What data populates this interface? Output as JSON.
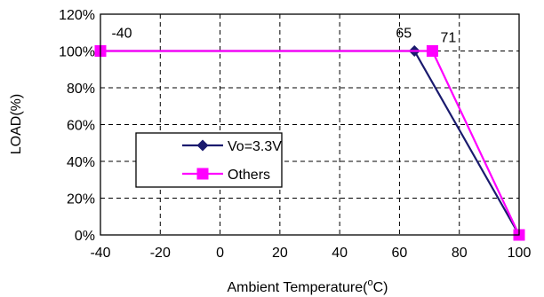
{
  "chart_data": {
    "type": "line",
    "xlabel": "Ambient Temperature",
    "xlabel_unit_sup": "o",
    "xlabel_unit_tail": "C)",
    "ylabel": "LOAD(%)",
    "xlim": [
      -40,
      100
    ],
    "ylim": [
      0,
      120
    ],
    "x_ticks": [
      -40,
      -20,
      0,
      20,
      40,
      60,
      80,
      100
    ],
    "y_ticks": [
      0,
      20,
      40,
      60,
      80,
      100,
      120
    ],
    "y_tick_labels": [
      "0%",
      "20%",
      "40%",
      "60%",
      "80%",
      "100%",
      "120%"
    ],
    "grid": true,
    "legend_position": "middle-left",
    "series": [
      {
        "name": "Vo=3.3V",
        "color": "#1a1a6e",
        "marker": "diamond",
        "points": [
          [
            -40,
            100
          ],
          [
            65,
            100
          ],
          [
            100,
            0
          ]
        ]
      },
      {
        "name": "Others",
        "color": "#ff00ff",
        "marker": "square",
        "points": [
          [
            -40,
            100
          ],
          [
            71,
            100
          ],
          [
            100,
            0
          ]
        ]
      }
    ],
    "annotations": [
      {
        "text": "-40",
        "x": -40,
        "y": 100
      },
      {
        "text": "65",
        "x": 65,
        "y": 100
      },
      {
        "text": "71",
        "x": 71,
        "y": 100
      }
    ]
  }
}
